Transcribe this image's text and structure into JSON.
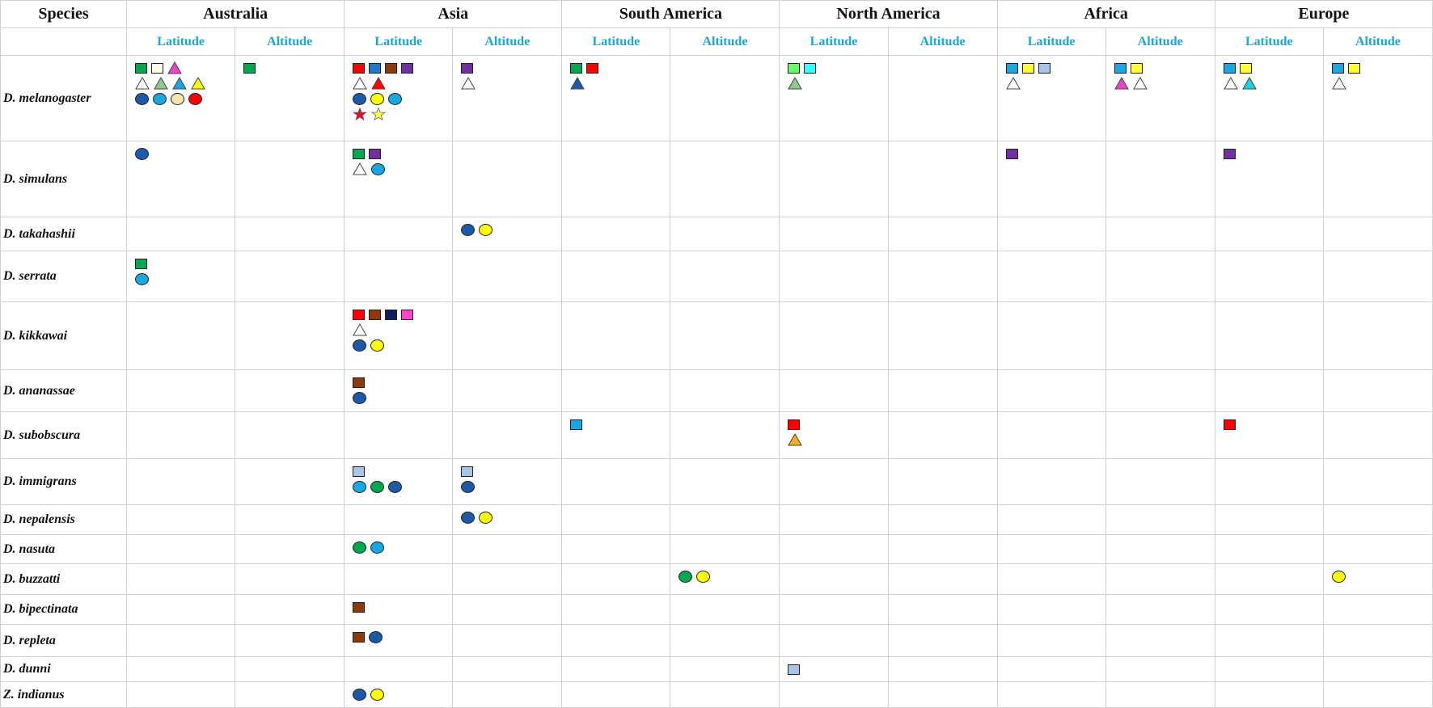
{
  "table": {
    "species_header": "Species",
    "regions": [
      "Australia",
      "Asia",
      "South America",
      "North America",
      "Africa",
      "Europe"
    ],
    "sub_headers": [
      "Latitude",
      "Altitude",
      "Latitude",
      "Altitude",
      "Latitude",
      "Altitude",
      "Latitude",
      "Altitude",
      "Latitude",
      "Altitude",
      "Latitude",
      "Altitude"
    ],
    "rows": [
      {
        "species": "D. melanogaster",
        "cells": [
          [
            [
              {
                "s": "square",
                "c": "#00a651"
              },
              {
                "s": "square",
                "c": "#fffde8"
              },
              {
                "s": "triangle",
                "c": "#e845c8"
              }
            ],
            [
              {
                "s": "triangle",
                "c": "#ffffff"
              },
              {
                "s": "triangle",
                "c": "#8fc98a"
              },
              {
                "s": "triangle",
                "c": "#19a7e0"
              },
              {
                "s": "triangle",
                "c": "#ffff00"
              }
            ],
            [
              {
                "s": "circle",
                "c": "#1c5aa8"
              },
              {
                "s": "circle",
                "c": "#19a7e0"
              },
              {
                "s": "circle",
                "c": "#f5e6b0"
              },
              {
                "s": "circle",
                "c": "#ff0000"
              }
            ]
          ],
          [
            [
              {
                "s": "square",
                "c": "#00a651"
              }
            ]
          ],
          [
            [
              {
                "s": "square",
                "c": "#ff0000"
              },
              {
                "s": "square",
                "c": "#1f78c8"
              },
              {
                "s": "square",
                "c": "#8b3a0f"
              },
              {
                "s": "square",
                "c": "#7030a0"
              }
            ],
            [
              {
                "s": "triangle",
                "c": "#ffffff"
              },
              {
                "s": "triangle",
                "c": "#ff0000"
              }
            ],
            [
              {
                "s": "circle",
                "c": "#1c5aa8"
              },
              {
                "s": "circle",
                "c": "#ffff00"
              },
              {
                "s": "circle",
                "c": "#19a7e0"
              }
            ],
            [
              {
                "s": "star",
                "c": "#e0102a"
              },
              {
                "s": "star",
                "c": "#ffff44"
              }
            ]
          ],
          [
            [
              {
                "s": "square",
                "c": "#7030a0"
              }
            ],
            [
              {
                "s": "triangle",
                "c": "#ffffff"
              }
            ]
          ],
          [
            [
              {
                "s": "square",
                "c": "#00a651"
              },
              {
                "s": "square",
                "c": "#ff0000"
              }
            ],
            [
              {
                "s": "triangle",
                "c": "#1c5aa8"
              }
            ]
          ],
          [],
          [
            [
              {
                "s": "square",
                "c": "#66ff66"
              },
              {
                "s": "square",
                "c": "#33ffff"
              }
            ],
            [
              {
                "s": "triangle",
                "c": "#8fc98a"
              }
            ]
          ],
          [],
          [
            [
              {
                "s": "square",
                "c": "#19a7e0"
              },
              {
                "s": "square",
                "c": "#ffff33"
              },
              {
                "s": "square",
                "c": "#a9c4e6"
              }
            ],
            [
              {
                "s": "triangle",
                "c": "#ffffff"
              }
            ]
          ],
          [
            [
              {
                "s": "square",
                "c": "#19a7e0"
              },
              {
                "s": "square",
                "c": "#ffff33"
              }
            ],
            [
              {
                "s": "triangle",
                "c": "#e845c8"
              },
              {
                "s": "triangle",
                "c": "#ffffff"
              }
            ]
          ],
          [
            [
              {
                "s": "square",
                "c": "#19a7e0"
              },
              {
                "s": "square",
                "c": "#ffff33"
              }
            ],
            [
              {
                "s": "triangle",
                "c": "#ffffff"
              },
              {
                "s": "triangle",
                "c": "#19d3e0"
              }
            ]
          ],
          [
            [
              {
                "s": "square",
                "c": "#19a7e0"
              },
              {
                "s": "square",
                "c": "#ffff33"
              }
            ],
            [
              {
                "s": "triangle",
                "c": "#ffffff"
              }
            ]
          ]
        ]
      },
      {
        "species": "D. simulans",
        "cells": [
          [
            [
              {
                "s": "circle",
                "c": "#1c5aa8"
              }
            ]
          ],
          [],
          [
            [
              {
                "s": "square",
                "c": "#00a651"
              },
              {
                "s": "square",
                "c": "#7030a0"
              }
            ],
            [
              {
                "s": "triangle",
                "c": "#ffffff"
              },
              {
                "s": "circle",
                "c": "#19a7e0"
              }
            ]
          ],
          [],
          [],
          [],
          [],
          [],
          [
            [
              {
                "s": "square",
                "c": "#7030a0"
              }
            ]
          ],
          [],
          [
            [
              {
                "s": "square",
                "c": "#7030a0"
              }
            ]
          ],
          []
        ]
      },
      {
        "species": "D. takahashii",
        "cells": [
          [],
          [],
          [],
          [
            [
              {
                "s": "circle",
                "c": "#1c5aa8"
              },
              {
                "s": "circle",
                "c": "#ffff00"
              }
            ]
          ],
          [],
          [],
          [],
          [],
          [],
          [],
          [],
          []
        ]
      },
      {
        "species": "D. serrata",
        "cells": [
          [
            [
              {
                "s": "square",
                "c": "#00a651"
              }
            ],
            [
              {
                "s": "circle",
                "c": "#19a7e0"
              }
            ]
          ],
          [],
          [],
          [],
          [],
          [],
          [],
          [],
          [],
          [],
          [],
          []
        ]
      },
      {
        "species": "D. kikkawai",
        "cells": [
          [],
          [],
          [
            [
              {
                "s": "square",
                "c": "#ff0000"
              },
              {
                "s": "square",
                "c": "#8b3a0f"
              },
              {
                "s": "square",
                "c": "#0d1f5c"
              },
              {
                "s": "square",
                "c": "#ff44cc"
              }
            ],
            [
              {
                "s": "triangle",
                "c": "#ffffff"
              }
            ],
            [
              {
                "s": "circle",
                "c": "#1c5aa8"
              },
              {
                "s": "circle",
                "c": "#ffff00"
              }
            ]
          ],
          [],
          [],
          [],
          [],
          [],
          [],
          [],
          [],
          []
        ]
      },
      {
        "species": "D. ananassae",
        "cells": [
          [],
          [],
          [
            [
              {
                "s": "square",
                "c": "#8b3a0f"
              }
            ],
            [
              {
                "s": "circle",
                "c": "#1c5aa8"
              }
            ]
          ],
          [],
          [],
          [],
          [],
          [],
          [],
          [],
          [],
          []
        ]
      },
      {
        "species": "D. subobscura",
        "cells": [
          [],
          [],
          [],
          [],
          [
            [
              {
                "s": "square",
                "c": "#19a7e0"
              }
            ]
          ],
          [],
          [
            [
              {
                "s": "square",
                "c": "#ff0000"
              }
            ],
            [
              {
                "s": "triangle",
                "c": "#f5b021"
              }
            ]
          ],
          [],
          [],
          [],
          [
            [
              {
                "s": "square",
                "c": "#ff0000"
              }
            ]
          ],
          []
        ]
      },
      {
        "species": "D. immigrans",
        "cells": [
          [],
          [],
          [
            [
              {
                "s": "square",
                "c": "#a9c4e6"
              }
            ],
            [
              {
                "s": "circle",
                "c": "#19a7e0"
              },
              {
                "s": "circle",
                "c": "#00a651"
              },
              {
                "s": "circle",
                "c": "#1c5aa8"
              }
            ]
          ],
          [
            [
              {
                "s": "square",
                "c": "#a9c4e6"
              }
            ],
            [
              {
                "s": "circle",
                "c": "#1c5aa8"
              }
            ]
          ],
          [],
          [],
          [],
          [],
          [],
          [],
          [],
          []
        ]
      },
      {
        "species": "D. nepalensis",
        "cells": [
          [],
          [],
          [],
          [
            [
              {
                "s": "circle",
                "c": "#1c5aa8"
              },
              {
                "s": "circle",
                "c": "#ffff00"
              }
            ]
          ],
          [],
          [],
          [],
          [],
          [],
          [],
          [],
          []
        ]
      },
      {
        "species": "D. nasuta",
        "cells": [
          [],
          [],
          [
            [
              {
                "s": "circle",
                "c": "#00a651"
              },
              {
                "s": "circle",
                "c": "#19a7e0"
              }
            ]
          ],
          [],
          [],
          [],
          [],
          [],
          [],
          [],
          [],
          []
        ]
      },
      {
        "species": "D. buzzatti",
        "cells": [
          [],
          [],
          [],
          [],
          [],
          [
            [
              {
                "s": "circle",
                "c": "#00a651"
              },
              {
                "s": "circle",
                "c": "#ffff00"
              }
            ]
          ],
          [],
          [],
          [],
          [],
          [],
          [
            [
              {
                "s": "circle",
                "c": "#ffff00"
              }
            ]
          ]
        ]
      },
      {
        "species": "D. bipectinata",
        "cells": [
          [],
          [],
          [
            [
              {
                "s": "square",
                "c": "#8b3a0f"
              }
            ]
          ],
          [],
          [],
          [],
          [],
          [],
          [],
          [],
          [],
          []
        ]
      },
      {
        "species": "D. repleta",
        "cells": [
          [],
          [],
          [
            [
              {
                "s": "square",
                "c": "#8b3a0f"
              },
              {
                "s": "circle",
                "c": "#1c5aa8"
              }
            ]
          ],
          [],
          [],
          [],
          [],
          [],
          [],
          [],
          [],
          []
        ]
      },
      {
        "species": "D. dunni",
        "cells": [
          [],
          [],
          [],
          [],
          [],
          [],
          [
            [
              {
                "s": "square",
                "c": "#a9c4e6"
              }
            ]
          ],
          [],
          [],
          [],
          [],
          []
        ]
      },
      {
        "species": "Z. indianus",
        "cells": [
          [],
          [],
          [
            [
              {
                "s": "circle",
                "c": "#1c5aa8"
              },
              {
                "s": "circle",
                "c": "#ffff00"
              }
            ]
          ],
          [],
          [],
          [],
          [],
          [],
          [],
          [],
          [],
          []
        ]
      }
    ]
  }
}
